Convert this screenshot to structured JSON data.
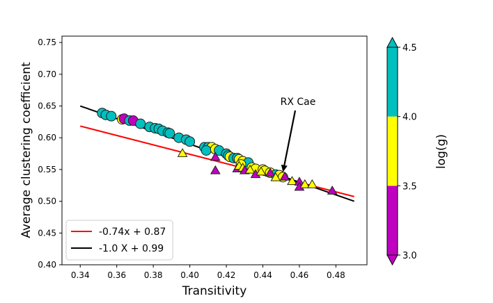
{
  "chart_data": {
    "type": "scatter",
    "title": "",
    "xlabel": "Transitivity",
    "ylabel": "Average clustering coefficient",
    "xlim": [
      0.33,
      0.497
    ],
    "ylim": [
      0.4,
      0.76
    ],
    "xticks": [
      0.34,
      0.36,
      0.38,
      0.4,
      0.42,
      0.44,
      0.46,
      0.48
    ],
    "xtick_labels": [
      "0.34",
      "0.36",
      "0.38",
      "0.40",
      "0.42",
      "0.44",
      "0.46",
      "0.48"
    ],
    "yticks": [
      0.4,
      0.45,
      0.5,
      0.55,
      0.6,
      0.65,
      0.7,
      0.75
    ],
    "ytick_labels": [
      "0.40",
      "0.45",
      "0.50",
      "0.55",
      "0.60",
      "0.65",
      "0.70",
      "0.75"
    ],
    "colorbar": {
      "label": "log(g)",
      "range": [
        3.0,
        4.5
      ],
      "ticks": [
        "3.0",
        "3.5",
        "4.0",
        "4.5"
      ],
      "bands": [
        {
          "from": 3.0,
          "to": 3.5,
          "color": "#c000c0"
        },
        {
          "from": 3.5,
          "to": 4.0,
          "color": "#ffff00"
        },
        {
          "from": 4.0,
          "to": 4.5,
          "color": "#00bfbf"
        }
      ]
    },
    "lines": [
      {
        "name": "-0.74x + 0.87",
        "slope": -0.74,
        "intercept": 0.87,
        "x_range": [
          0.34,
          0.49
        ],
        "color": "#ff0000"
      },
      {
        "name": "-1.0 X + 0.99",
        "slope": -1.0,
        "intercept": 0.99,
        "x_range": [
          0.34,
          0.49
        ],
        "color": "#000000"
      }
    ],
    "legend_position": "lower-left",
    "annotation": {
      "text": "RX Cae",
      "x": 0.451,
      "y": 0.546
    },
    "series": [
      {
        "name": "circles",
        "marker": "circle",
        "points": [
          {
            "x": 0.352,
            "y": 0.639,
            "logg": 4.3
          },
          {
            "x": 0.354,
            "y": 0.636,
            "logg": 4.3
          },
          {
            "x": 0.357,
            "y": 0.634,
            "logg": 4.3
          },
          {
            "x": 0.363,
            "y": 0.629,
            "logg": 3.8
          },
          {
            "x": 0.364,
            "y": 0.63,
            "logg": 3.2
          },
          {
            "x": 0.367,
            "y": 0.627,
            "logg": 4.3
          },
          {
            "x": 0.369,
            "y": 0.627,
            "logg": 3.2
          },
          {
            "x": 0.373,
            "y": 0.622,
            "logg": 4.3
          },
          {
            "x": 0.378,
            "y": 0.617,
            "logg": 4.3
          },
          {
            "x": 0.381,
            "y": 0.615,
            "logg": 4.3
          },
          {
            "x": 0.383,
            "y": 0.614,
            "logg": 4.3
          },
          {
            "x": 0.385,
            "y": 0.611,
            "logg": 4.3
          },
          {
            "x": 0.388,
            "y": 0.608,
            "logg": 4.3
          },
          {
            "x": 0.389,
            "y": 0.607,
            "logg": 4.3
          },
          {
            "x": 0.394,
            "y": 0.6,
            "logg": 4.3
          },
          {
            "x": 0.398,
            "y": 0.597,
            "logg": 4.3
          },
          {
            "x": 0.4,
            "y": 0.594,
            "logg": 4.3
          },
          {
            "x": 0.408,
            "y": 0.585,
            "logg": 4.3
          },
          {
            "x": 0.41,
            "y": 0.585,
            "logg": 4.3
          },
          {
            "x": 0.412,
            "y": 0.585,
            "logg": 3.8
          },
          {
            "x": 0.409,
            "y": 0.58,
            "logg": 4.3
          },
          {
            "x": 0.414,
            "y": 0.582,
            "logg": 3.8
          },
          {
            "x": 0.416,
            "y": 0.58,
            "logg": 4.3
          },
          {
            "x": 0.42,
            "y": 0.575,
            "logg": 4.3
          },
          {
            "x": 0.421,
            "y": 0.572,
            "logg": 4.3
          },
          {
            "x": 0.422,
            "y": 0.57,
            "logg": 3.8
          },
          {
            "x": 0.424,
            "y": 0.568,
            "logg": 4.3
          },
          {
            "x": 0.426,
            "y": 0.568,
            "logg": 4.3
          },
          {
            "x": 0.427,
            "y": 0.566,
            "logg": 3.8
          },
          {
            "x": 0.429,
            "y": 0.563,
            "logg": 3.8
          },
          {
            "x": 0.432,
            "y": 0.561,
            "logg": 4.3
          },
          {
            "x": 0.428,
            "y": 0.558,
            "logg": 3.8
          },
          {
            "x": 0.434,
            "y": 0.553,
            "logg": 3.8
          },
          {
            "x": 0.436,
            "y": 0.551,
            "logg": 3.8
          },
          {
            "x": 0.44,
            "y": 0.55,
            "logg": 3.8
          },
          {
            "x": 0.441,
            "y": 0.548,
            "logg": 3.8
          },
          {
            "x": 0.444,
            "y": 0.545,
            "logg": 3.8
          },
          {
            "x": 0.447,
            "y": 0.542,
            "logg": 4.3
          },
          {
            "x": 0.449,
            "y": 0.541,
            "logg": 3.8
          },
          {
            "x": 0.451,
            "y": 0.538,
            "logg": 3.8
          }
        ]
      },
      {
        "name": "triangles",
        "marker": "triangle",
        "points": [
          {
            "x": 0.396,
            "y": 0.575,
            "logg": 3.8
          },
          {
            "x": 0.414,
            "y": 0.569,
            "logg": 3.2
          },
          {
            "x": 0.414,
            "y": 0.548,
            "logg": 3.2
          },
          {
            "x": 0.426,
            "y": 0.551,
            "logg": 3.2
          },
          {
            "x": 0.427,
            "y": 0.555,
            "logg": 3.8
          },
          {
            "x": 0.429,
            "y": 0.552,
            "logg": 3.8
          },
          {
            "x": 0.43,
            "y": 0.548,
            "logg": 3.2
          },
          {
            "x": 0.433,
            "y": 0.549,
            "logg": 3.8
          },
          {
            "x": 0.436,
            "y": 0.542,
            "logg": 3.2
          },
          {
            "x": 0.439,
            "y": 0.546,
            "logg": 3.8
          },
          {
            "x": 0.444,
            "y": 0.544,
            "logg": 3.2
          },
          {
            "x": 0.447,
            "y": 0.537,
            "logg": 3.8
          },
          {
            "x": 0.452,
            "y": 0.538,
            "logg": 3.2
          },
          {
            "x": 0.456,
            "y": 0.531,
            "logg": 3.8
          },
          {
            "x": 0.46,
            "y": 0.53,
            "logg": 3.2
          },
          {
            "x": 0.46,
            "y": 0.522,
            "logg": 3.2
          },
          {
            "x": 0.463,
            "y": 0.526,
            "logg": 3.8
          },
          {
            "x": 0.467,
            "y": 0.526,
            "logg": 3.8
          },
          {
            "x": 0.478,
            "y": 0.516,
            "logg": 3.2
          }
        ]
      }
    ]
  }
}
